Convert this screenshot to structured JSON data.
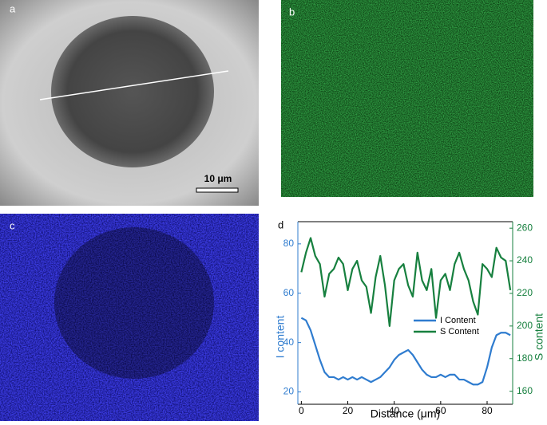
{
  "panels": [
    {
      "label": "a",
      "scale_bar": "10 μm"
    },
    {
      "label": "b"
    },
    {
      "label": "c"
    }
  ],
  "chart_data": {
    "type": "line",
    "panel_label": "d",
    "x_label": "Distance (μm)",
    "y_label": "I content",
    "y2_label": "S content",
    "x": [
      0,
      2,
      4,
      6,
      8,
      10,
      12,
      14,
      16,
      18,
      20,
      22,
      24,
      26,
      28,
      30,
      32,
      34,
      36,
      38,
      40,
      42,
      44,
      46,
      48,
      50,
      52,
      54,
      56,
      58,
      60,
      62,
      64,
      66,
      68,
      70,
      72,
      74,
      76,
      78,
      80,
      82,
      84,
      86,
      88,
      90
    ],
    "series": [
      {
        "name": "I Content",
        "color": "#2f7ccf",
        "axis": "y",
        "values": [
          50,
          49,
          45,
          39,
          33,
          28,
          26,
          26,
          25,
          26,
          25,
          26,
          25,
          26,
          25,
          24,
          25,
          26,
          28,
          30,
          33,
          35,
          36,
          37,
          35,
          32,
          29,
          27,
          26,
          26,
          27,
          26,
          27,
          27,
          25,
          25,
          24,
          23,
          23,
          24,
          30,
          38,
          43,
          44,
          44,
          43
        ]
      },
      {
        "name": "S Content",
        "color": "#17803f",
        "axis": "y2",
        "values": [
          233,
          245,
          254,
          243,
          238,
          218,
          232,
          235,
          242,
          238,
          222,
          235,
          240,
          228,
          224,
          208,
          230,
          243,
          225,
          200,
          228,
          235,
          238,
          225,
          218,
          245,
          228,
          222,
          235,
          205,
          228,
          232,
          222,
          238,
          245,
          235,
          228,
          215,
          207,
          238,
          235,
          230,
          248,
          242,
          240,
          222
        ]
      }
    ],
    "xlim": [
      -1.5,
      91
    ],
    "xticks": [
      0,
      20,
      40,
      60,
      80
    ],
    "ylim": [
      15,
      89
    ],
    "yticks": [
      20,
      40,
      60,
      80
    ],
    "y2lim": [
      152,
      264
    ],
    "y2ticks": [
      160,
      180,
      200,
      220,
      240,
      260
    ],
    "legend": "right"
  }
}
